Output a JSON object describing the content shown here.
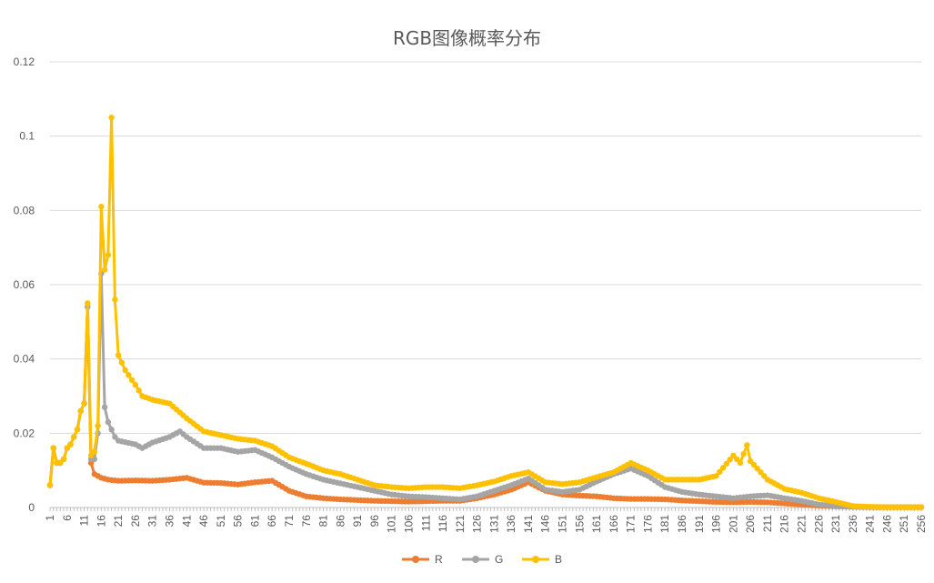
{
  "chart_data": {
    "type": "line",
    "title": "RGB图像概率分布",
    "xlabel": "",
    "ylabel": "",
    "ylim": [
      0,
      0.12
    ],
    "yticks": [
      "0",
      "0.02",
      "0.04",
      "0.06",
      "0.08",
      "0.1",
      "0.12"
    ],
    "x_range": [
      1,
      256
    ],
    "x_tick_step": 5,
    "grid": true,
    "legend_position": "bottom",
    "series": [
      {
        "name": "R",
        "color": "#ED7D31",
        "points": [
          [
            1,
            0.006
          ],
          [
            2,
            0.016
          ],
          [
            3,
            0.012
          ],
          [
            4,
            0.012
          ],
          [
            5,
            0.013
          ],
          [
            6,
            0.016
          ],
          [
            7,
            0.017
          ],
          [
            8,
            0.019
          ],
          [
            9,
            0.021
          ],
          [
            10,
            0.026
          ],
          [
            11,
            0.028
          ],
          [
            12,
            0.054
          ],
          [
            13,
            0.012
          ],
          [
            14,
            0.009
          ],
          [
            15,
            0.0085
          ],
          [
            16,
            0.008
          ],
          [
            18,
            0.0075
          ],
          [
            21,
            0.0072
          ],
          [
            26,
            0.0073
          ],
          [
            31,
            0.0072
          ],
          [
            36,
            0.0075
          ],
          [
            41,
            0.008
          ],
          [
            46,
            0.0067
          ],
          [
            51,
            0.0066
          ],
          [
            56,
            0.0062
          ],
          [
            61,
            0.0068
          ],
          [
            66,
            0.0072
          ],
          [
            71,
            0.0045
          ],
          [
            76,
            0.003
          ],
          [
            81,
            0.0025
          ],
          [
            86,
            0.0022
          ],
          [
            91,
            0.002
          ],
          [
            96,
            0.0018
          ],
          [
            101,
            0.0017
          ],
          [
            106,
            0.0016
          ],
          [
            111,
            0.0017
          ],
          [
            116,
            0.0018
          ],
          [
            121,
            0.0018
          ],
          [
            126,
            0.0025
          ],
          [
            131,
            0.0035
          ],
          [
            136,
            0.0048
          ],
          [
            141,
            0.0068
          ],
          [
            146,
            0.0045
          ],
          [
            151,
            0.0035
          ],
          [
            156,
            0.0032
          ],
          [
            161,
            0.003
          ],
          [
            166,
            0.0025
          ],
          [
            171,
            0.0023
          ],
          [
            176,
            0.0023
          ],
          [
            181,
            0.0022
          ],
          [
            186,
            0.0019
          ],
          [
            191,
            0.0017
          ],
          [
            196,
            0.0015
          ],
          [
            201,
            0.0014
          ],
          [
            206,
            0.0015
          ],
          [
            211,
            0.0014
          ],
          [
            216,
            0.0011
          ],
          [
            221,
            0.0008
          ],
          [
            226,
            0.0005
          ],
          [
            231,
            0.0003
          ],
          [
            236,
            0.0002
          ],
          [
            241,
            0.0001
          ],
          [
            246,
            0.0001
          ],
          [
            251,
            0.0001
          ],
          [
            256,
            0.0001
          ]
        ]
      },
      {
        "name": "G",
        "color": "#A5A5A5",
        "points": [
          [
            1,
            0.006
          ],
          [
            2,
            0.016
          ],
          [
            3,
            0.012
          ],
          [
            4,
            0.012
          ],
          [
            5,
            0.013
          ],
          [
            6,
            0.016
          ],
          [
            7,
            0.017
          ],
          [
            8,
            0.019
          ],
          [
            9,
            0.021
          ],
          [
            10,
            0.026
          ],
          [
            11,
            0.028
          ],
          [
            12,
            0.054
          ],
          [
            13,
            0.013
          ],
          [
            14,
            0.013
          ],
          [
            15,
            0.02
          ],
          [
            16,
            0.063
          ],
          [
            17,
            0.027
          ],
          [
            18,
            0.023
          ],
          [
            19,
            0.021
          ],
          [
            20,
            0.019
          ],
          [
            21,
            0.018
          ],
          [
            26,
            0.017
          ],
          [
            28,
            0.016
          ],
          [
            31,
            0.0175
          ],
          [
            36,
            0.019
          ],
          [
            39,
            0.0205
          ],
          [
            41,
            0.019
          ],
          [
            46,
            0.016
          ],
          [
            51,
            0.016
          ],
          [
            56,
            0.015
          ],
          [
            61,
            0.0155
          ],
          [
            66,
            0.0135
          ],
          [
            71,
            0.011
          ],
          [
            76,
            0.009
          ],
          [
            81,
            0.0075
          ],
          [
            86,
            0.0065
          ],
          [
            91,
            0.0055
          ],
          [
            96,
            0.0045
          ],
          [
            101,
            0.0035
          ],
          [
            106,
            0.003
          ],
          [
            111,
            0.0028
          ],
          [
            116,
            0.0025
          ],
          [
            121,
            0.0022
          ],
          [
            126,
            0.003
          ],
          [
            131,
            0.0045
          ],
          [
            136,
            0.006
          ],
          [
            141,
            0.0078
          ],
          [
            146,
            0.0048
          ],
          [
            151,
            0.0042
          ],
          [
            156,
            0.0048
          ],
          [
            161,
            0.007
          ],
          [
            166,
            0.009
          ],
          [
            171,
            0.0105
          ],
          [
            176,
            0.0085
          ],
          [
            181,
            0.0055
          ],
          [
            186,
            0.0042
          ],
          [
            191,
            0.0035
          ],
          [
            196,
            0.003
          ],
          [
            201,
            0.0025
          ],
          [
            206,
            0.003
          ],
          [
            211,
            0.0033
          ],
          [
            216,
            0.0025
          ],
          [
            221,
            0.0018
          ],
          [
            226,
            0.0008
          ],
          [
            231,
            0.0004
          ],
          [
            236,
            0.0002
          ],
          [
            241,
            0.0001
          ],
          [
            246,
            0.0001
          ],
          [
            251,
            0.0001
          ],
          [
            256,
            0.0001
          ]
        ]
      },
      {
        "name": "B",
        "color": "#FFC000",
        "points": [
          [
            1,
            0.006
          ],
          [
            2,
            0.016
          ],
          [
            3,
            0.012
          ],
          [
            4,
            0.012
          ],
          [
            5,
            0.013
          ],
          [
            6,
            0.016
          ],
          [
            7,
            0.017
          ],
          [
            8,
            0.019
          ],
          [
            9,
            0.021
          ],
          [
            10,
            0.026
          ],
          [
            11,
            0.028
          ],
          [
            12,
            0.055
          ],
          [
            13,
            0.014
          ],
          [
            14,
            0.015
          ],
          [
            15,
            0.022
          ],
          [
            16,
            0.081
          ],
          [
            17,
            0.064
          ],
          [
            18,
            0.068
          ],
          [
            19,
            0.105
          ],
          [
            20,
            0.056
          ],
          [
            21,
            0.041
          ],
          [
            23,
            0.037
          ],
          [
            26,
            0.033
          ],
          [
            28,
            0.03
          ],
          [
            31,
            0.029
          ],
          [
            36,
            0.028
          ],
          [
            41,
            0.024
          ],
          [
            46,
            0.0205
          ],
          [
            51,
            0.0195
          ],
          [
            56,
            0.0185
          ],
          [
            61,
            0.018
          ],
          [
            66,
            0.0165
          ],
          [
            71,
            0.0135
          ],
          [
            76,
            0.0118
          ],
          [
            81,
            0.01
          ],
          [
            86,
            0.009
          ],
          [
            91,
            0.0075
          ],
          [
            96,
            0.006
          ],
          [
            101,
            0.0055
          ],
          [
            106,
            0.0052
          ],
          [
            111,
            0.0055
          ],
          [
            116,
            0.0055
          ],
          [
            121,
            0.0052
          ],
          [
            126,
            0.006
          ],
          [
            131,
            0.007
          ],
          [
            136,
            0.0085
          ],
          [
            141,
            0.0095
          ],
          [
            146,
            0.0068
          ],
          [
            151,
            0.0063
          ],
          [
            156,
            0.0068
          ],
          [
            161,
            0.0082
          ],
          [
            166,
            0.0095
          ],
          [
            171,
            0.012
          ],
          [
            176,
            0.01
          ],
          [
            181,
            0.0075
          ],
          [
            186,
            0.0075
          ],
          [
            191,
            0.0075
          ],
          [
            196,
            0.0085
          ],
          [
            201,
            0.014
          ],
          [
            203,
            0.012
          ],
          [
            205,
            0.0168
          ],
          [
            206,
            0.0125
          ],
          [
            211,
            0.0075
          ],
          [
            216,
            0.005
          ],
          [
            221,
            0.004
          ],
          [
            226,
            0.0025
          ],
          [
            231,
            0.0015
          ],
          [
            236,
            0.0004
          ],
          [
            241,
            0.0002
          ],
          [
            246,
            0.0001
          ],
          [
            251,
            0.0001
          ],
          [
            256,
            0.0001
          ]
        ]
      }
    ]
  }
}
